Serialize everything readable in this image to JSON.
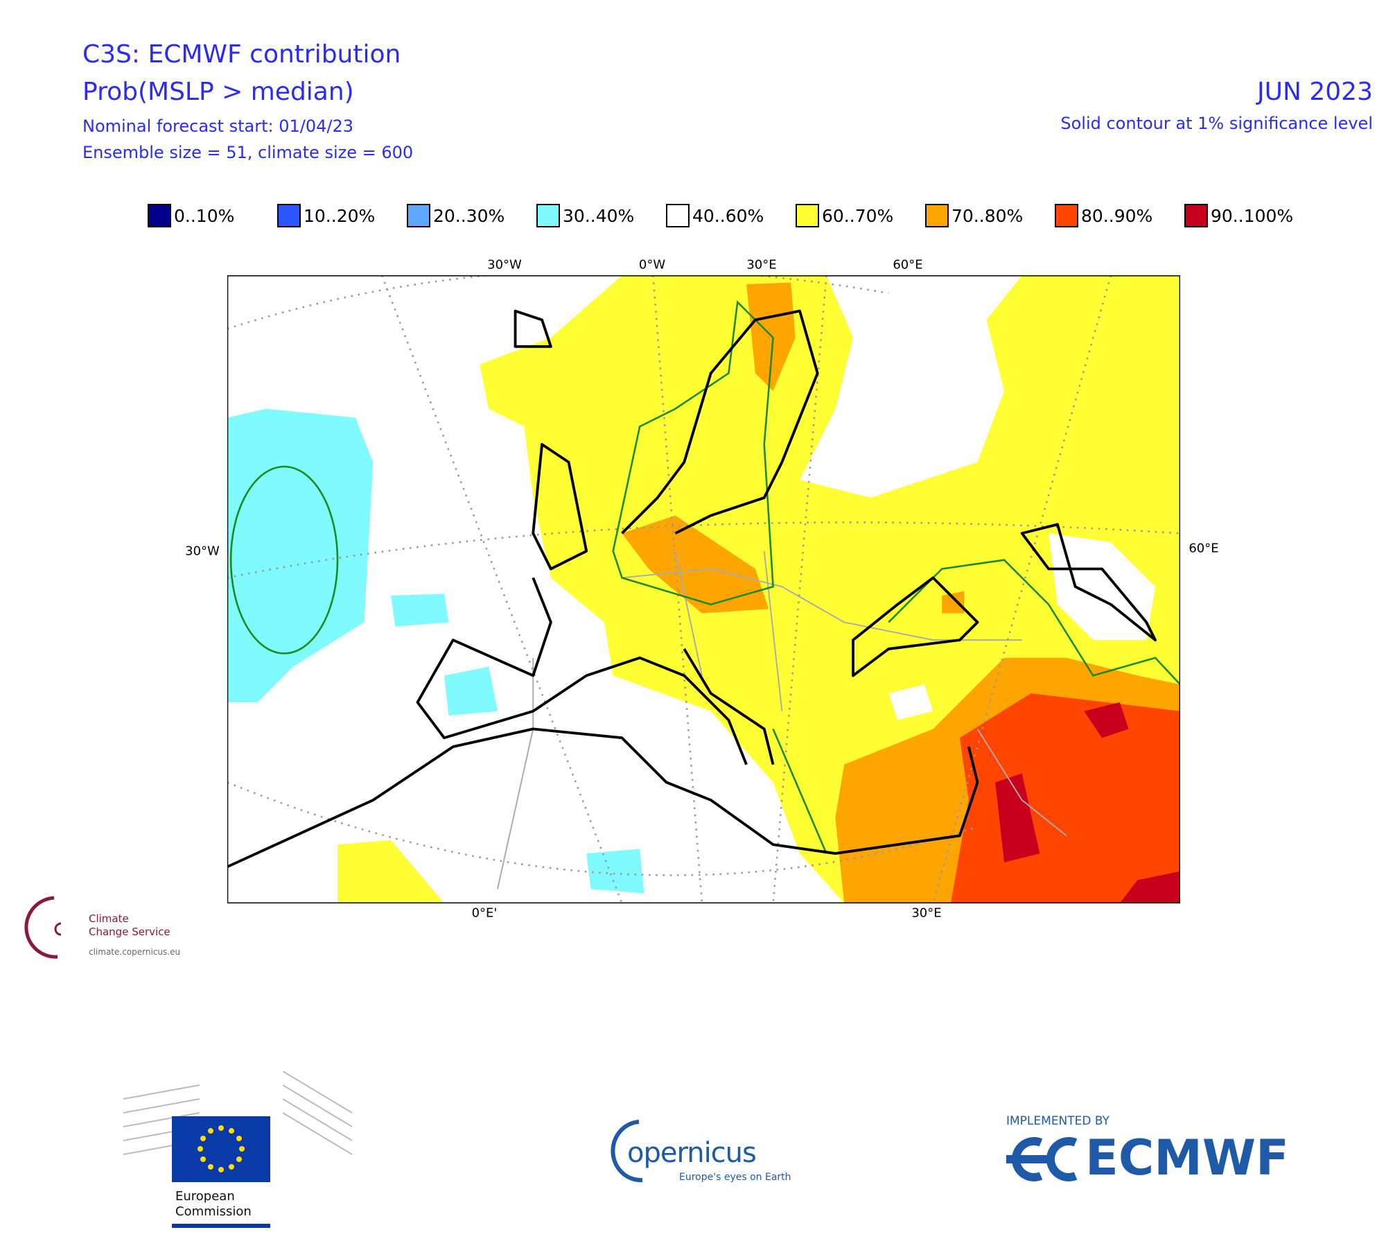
{
  "header": {
    "title": "C3S: ECMWF contribution",
    "subtitle": "Prob(MSLP > median)",
    "forecast_start": "Nominal forecast start: 01/04/23",
    "sizes": "Ensemble size = 51, climate size = 600",
    "month": "JUN 2023",
    "significance": "Solid contour at 1% significance level"
  },
  "legend": [
    {
      "label": "0..10%",
      "color": "#00008b"
    },
    {
      "label": "10..20%",
      "color": "#2b55ff"
    },
    {
      "label": "20..30%",
      "color": "#5fa8ff"
    },
    {
      "label": "30..40%",
      "color": "#7ffaff"
    },
    {
      "label": "40..60%",
      "color": "#ffffff"
    },
    {
      "label": "60..70%",
      "color": "#ffff33"
    },
    {
      "label": "70..80%",
      "color": "#ffa500"
    },
    {
      "label": "80..90%",
      "color": "#ff4500"
    },
    {
      "label": "90..100%",
      "color": "#c8001e"
    }
  ],
  "map": {
    "top_labels": [
      "30°W",
      "0°W",
      "30°E",
      "60°E"
    ],
    "left_label": "30°W",
    "right_label": "60°E",
    "bottom_labels": [
      "0°E'",
      "30°E"
    ]
  },
  "logos": {
    "c3s_line1": "Climate",
    "c3s_line2": "Change Service",
    "c3s_url": "climate.copernicus.eu",
    "ec_line1": "European",
    "ec_line2": "Commission",
    "copernicus": "opernicus",
    "copernicus_tagline": "Europe's eyes on Earth",
    "implemented_by": "IMPLEMENTED BY",
    "ecmwf": "ECMWF"
  }
}
